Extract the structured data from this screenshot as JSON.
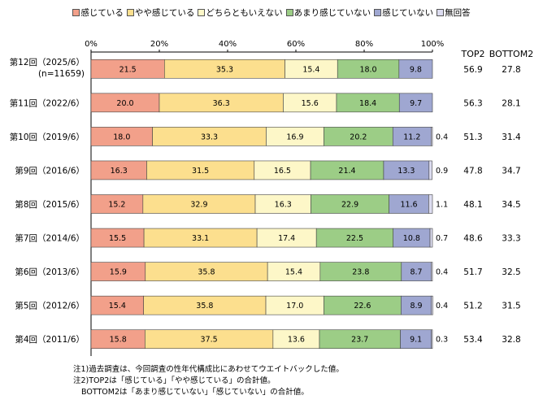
{
  "chart_data": {
    "type": "bar",
    "orientation": "horizontal",
    "stacked": true,
    "title": "",
    "xlabel": "",
    "ylabel": "",
    "xlim": [
      0,
      100
    ],
    "x_ticks": [
      "0%",
      "20%",
      "40%",
      "60%",
      "80%",
      "100%"
    ],
    "legend_position": "top",
    "grid": false,
    "categories": [
      "第12回（2025/6）",
      "第11回（2022/6）",
      "第10回（2019/6）",
      "第9回（2016/6）",
      "第8回（2015/6）",
      "第7回（2014/6）",
      "第6回（2013/6）",
      "第5回（2012/6）",
      "第4回（2011/6）"
    ],
    "category_sublabels": [
      "(n=11659)",
      "",
      "",
      "",
      "",
      "",
      "",
      "",
      ""
    ],
    "series": [
      {
        "name": "感じている",
        "color": "#f2a08a",
        "values": [
          21.5,
          20.0,
          18.0,
          16.3,
          15.2,
          15.5,
          15.9,
          15.4,
          15.8
        ],
        "labels": [
          "21.5",
          "20.0",
          "18.0",
          "16.3",
          "15.2",
          "15.5",
          "15.9",
          "15.4",
          "15.8"
        ]
      },
      {
        "name": "やや感じている",
        "color": "#fcdf8e",
        "values": [
          35.3,
          36.3,
          33.3,
          31.5,
          32.9,
          33.1,
          35.8,
          35.8,
          37.5
        ],
        "labels": [
          "35.3",
          "36.3",
          "33.3",
          "31.5",
          "32.9",
          "33.1",
          "35.8",
          "35.8",
          "37.5"
        ]
      },
      {
        "name": "どちらともいえない",
        "color": "#fdf7c8",
        "values": [
          15.4,
          15.6,
          16.9,
          16.5,
          16.3,
          17.4,
          15.4,
          17.0,
          13.6
        ],
        "labels": [
          "15.4",
          "15.6",
          "16.9",
          "16.5",
          "16.3",
          "17.4",
          "15.4",
          "17.0",
          "13.6"
        ]
      },
      {
        "name": "あまり感じていない",
        "color": "#9ccd86",
        "values": [
          18.0,
          18.4,
          20.2,
          21.4,
          22.9,
          22.5,
          23.8,
          22.6,
          23.7
        ],
        "labels": [
          "18.0",
          "18.4",
          "20.2",
          "21.4",
          "22.9",
          "22.5",
          "23.8",
          "22.6",
          "23.7"
        ]
      },
      {
        "name": "感じていない",
        "color": "#9fa7d1",
        "values": [
          9.8,
          9.7,
          11.2,
          13.3,
          11.6,
          10.8,
          8.7,
          8.9,
          9.1
        ],
        "labels": [
          "9.8",
          "9.7",
          "11.2",
          "13.3",
          "11.6",
          "10.8",
          "8.7",
          "8.9",
          "9.1"
        ]
      },
      {
        "name": "無回答",
        "color": "#dcdcf0",
        "values": [
          0,
          0,
          0.4,
          0.9,
          1.1,
          0.7,
          0.4,
          0.4,
          0.3
        ],
        "labels": [
          "",
          "",
          "0.4",
          "0.9",
          "1.1",
          "0.7",
          "0.4",
          "0.4",
          "0.3"
        ]
      }
    ],
    "summary_columns": {
      "headers": [
        "TOP2",
        "BOTTOM2"
      ],
      "top2": [
        "56.9",
        "56.3",
        "51.3",
        "47.8",
        "48.1",
        "48.6",
        "51.7",
        "51.2",
        "53.4"
      ],
      "bottom2": [
        "27.8",
        "28.1",
        "31.4",
        "34.7",
        "34.5",
        "33.3",
        "32.5",
        "31.5",
        "32.8"
      ]
    }
  },
  "notes": {
    "line1": "注1)過去調査は、今回調査の性年代構成比にあわせてウエイトバックした値。",
    "line2": "注2)TOP2は「感じている」「やや感じている」の合計値。",
    "line3": "BOTTOM2は「あまり感じていない」「感じていない」の合計値。"
  }
}
